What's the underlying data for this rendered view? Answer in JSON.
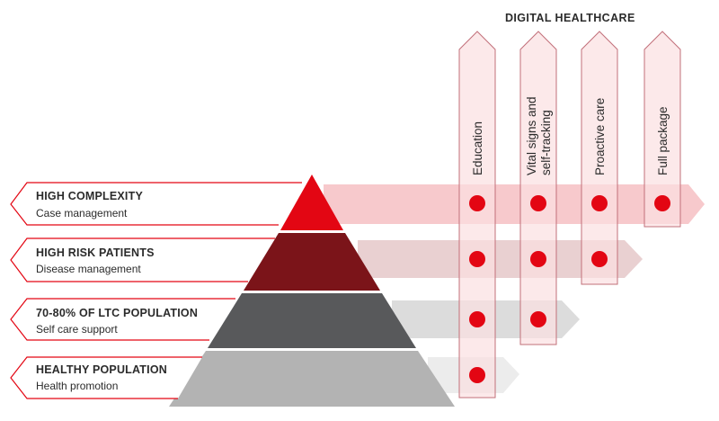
{
  "header": {
    "title": "DIGITAL HEALTHCARE"
  },
  "columns": [
    {
      "label": "Education"
    },
    {
      "label_line1": "Vital signs and",
      "label_line2": "self-tracking"
    },
    {
      "label": "Proactive care"
    },
    {
      "label": "Full package"
    }
  ],
  "levels": [
    {
      "title": "HIGH COMPLEXITY",
      "subtitle": "Case management",
      "color": "#e30613",
      "band_color": "#f4b7bb",
      "dots": 4
    },
    {
      "title": "HIGH RISK PATIENTS",
      "subtitle": "Disease management",
      "color": "#7b1419",
      "band_color": "#e3c4c6",
      "dots": 3
    },
    {
      "title": "70-80% OF LTC POPULATION",
      "subtitle": "Self care support",
      "color": "#58595b",
      "band_color": "#d6d6d6",
      "dots": 2
    },
    {
      "title": "HEALTHY POPULATION",
      "subtitle": "Health promotion",
      "color": "#b3b3b3",
      "band_color": "#ececec",
      "dots": 1
    }
  ],
  "colors": {
    "accent": "#e30613",
    "column_fill": "#fbdfe1",
    "column_stroke": "#c2707a",
    "label_border": "#e30613",
    "dot": "#e30613"
  }
}
